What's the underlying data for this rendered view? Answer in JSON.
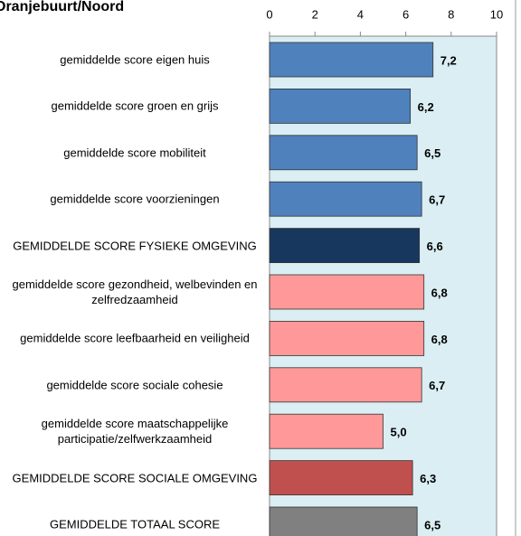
{
  "chart_data": {
    "type": "bar",
    "orientation": "horizontal",
    "title": "Oranjebuurt/Noord",
    "categories": [
      "gemiddelde score eigen huis",
      "gemiddelde score groen en grijs",
      "gemiddelde score mobiliteit",
      "gemiddelde score voorzieningen",
      "GEMIDDELDE SCORE FYSIEKE OMGEVING",
      "gemiddelde score gezondheid, welbevinden en zelfredzaamheid",
      "gemiddelde score leefbaarheid en veiligheid",
      "gemiddelde score sociale cohesie",
      "gemiddelde score maatschappelijke participatie/zelfwerkzaamheid",
      "GEMIDDELDE SCORE SOCIALE OMGEVING",
      "GEMIDDELDE TOTAAL SCORE"
    ],
    "values": [
      7.2,
      6.2,
      6.5,
      6.7,
      6.6,
      6.8,
      6.8,
      6.7,
      5.0,
      6.3,
      6.5
    ],
    "value_labels": [
      "7,2",
      "6,2",
      "6,5",
      "6,7",
      "6,6",
      "6,8",
      "6,8",
      "6,7",
      "5,0",
      "6,3",
      "6,5"
    ],
    "colors": [
      "#4f81bd",
      "#4f81bd",
      "#4f81bd",
      "#4f81bd",
      "#17375e",
      "#ff9999",
      "#ff9999",
      "#ff9999",
      "#ff9999",
      "#c0504d",
      "#808080"
    ],
    "xlim": [
      0,
      10
    ],
    "xticks": [
      0,
      2,
      4,
      6,
      8,
      10
    ],
    "background": "#daeef3"
  }
}
